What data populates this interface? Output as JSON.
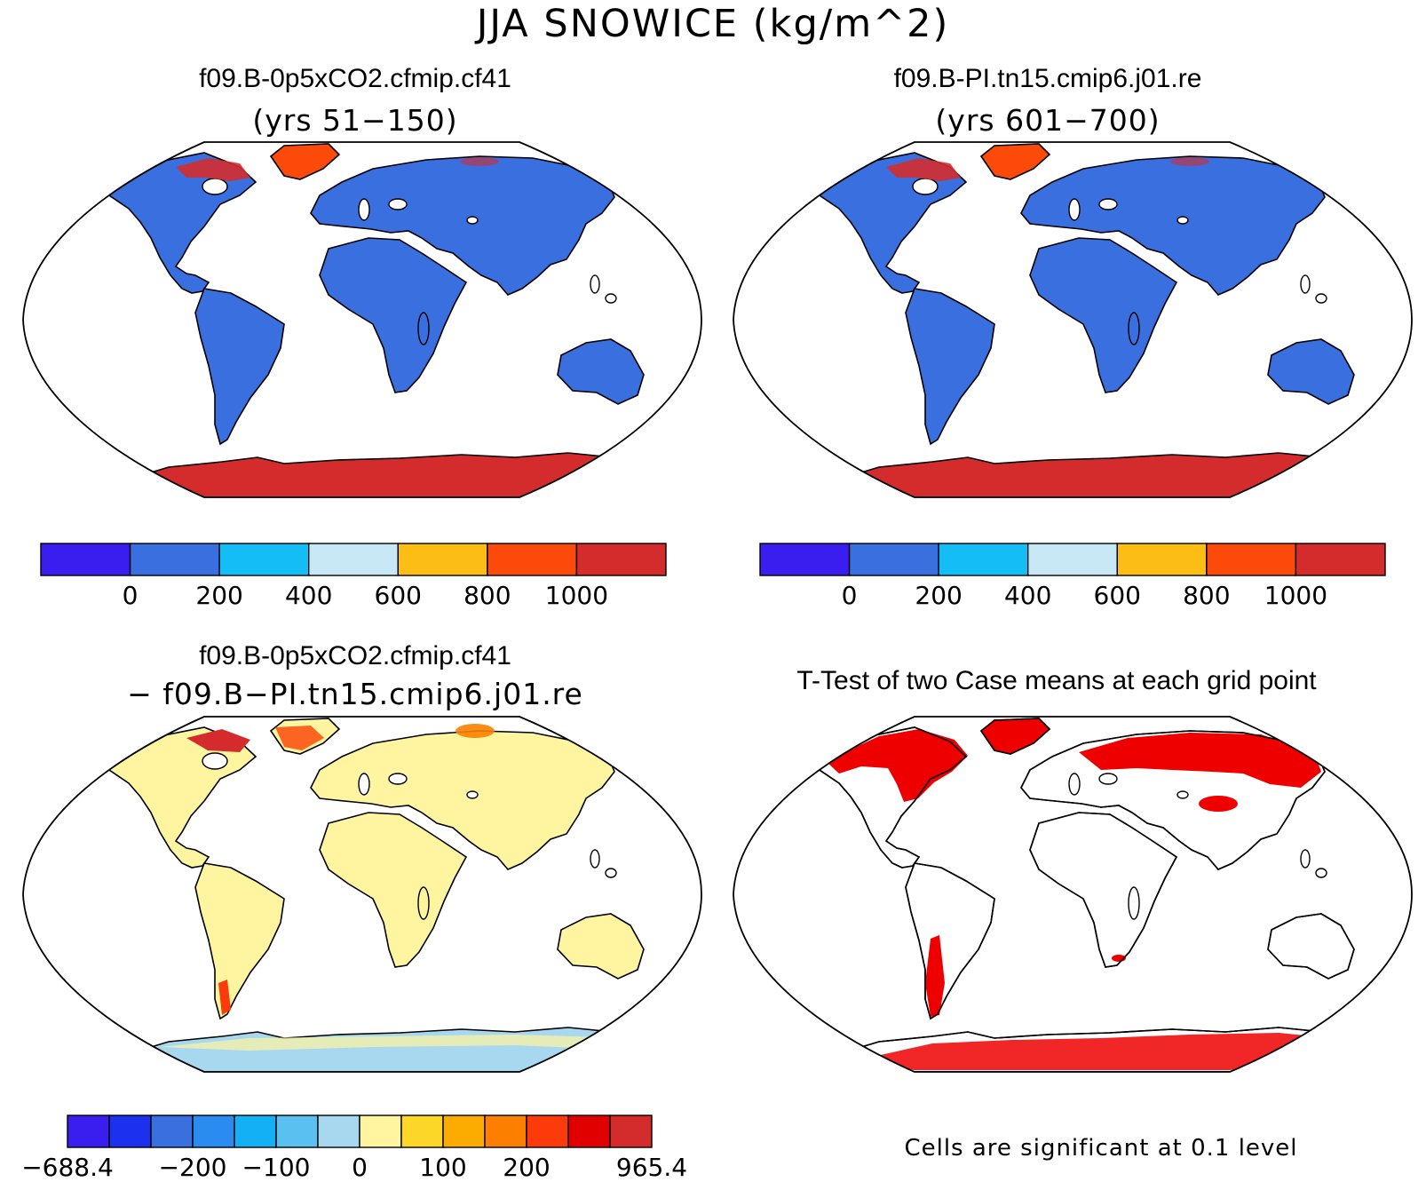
{
  "main_title": "JJA SNOWICE (kg/m^2)",
  "panels": [
    {
      "title": "f09.B-0p5xCO2.cfmip.cf41",
      "subtitle": "(yrs 51−150)"
    },
    {
      "title": "f09.B-PI.tn15.cmip6.j01.re",
      "subtitle": "(yrs 601−700)"
    },
    {
      "title": "f09.B-0p5xCO2.cfmip.cf41",
      "subtitle": "− f09.B−PI.tn15.cmip6.j01.re"
    },
    {
      "title": "T-Test of two Case means at each grid point",
      "subtitle": ""
    }
  ],
  "colorbar_abs": {
    "colors": [
      "#3a1ef0",
      "#3a6fe0",
      "#14bdf5",
      "#c8e8f5",
      "#fcbd14",
      "#fc4a0a",
      "#d42c2c"
    ],
    "ticks": [
      "0",
      "200",
      "400",
      "600",
      "800",
      "1000"
    ]
  },
  "colorbar_diff": {
    "colors": [
      "#3a1ef0",
      "#1c30f0",
      "#3a6fe0",
      "#2a8cf0",
      "#14b0f5",
      "#5ac0f0",
      "#a8d8f0",
      "#fff5a0",
      "#fcd728",
      "#fcab00",
      "#fc7f00",
      "#fc3a0a",
      "#e00000",
      "#d42c2c"
    ],
    "ticks": [
      "−688.4",
      "−200",
      "−100",
      "0",
      "100",
      "200",
      "965.4"
    ]
  },
  "ttest_note": "Cells are significant at 0.1 level",
  "land_colors": {
    "case_land": "#3a6fe0",
    "case_ice": "#d42c2c",
    "greenland": "#fc4a0a",
    "diff_land": "#fff5a0",
    "diff_antarctica": "#a8d8f0",
    "sig": "#ee0000"
  }
}
